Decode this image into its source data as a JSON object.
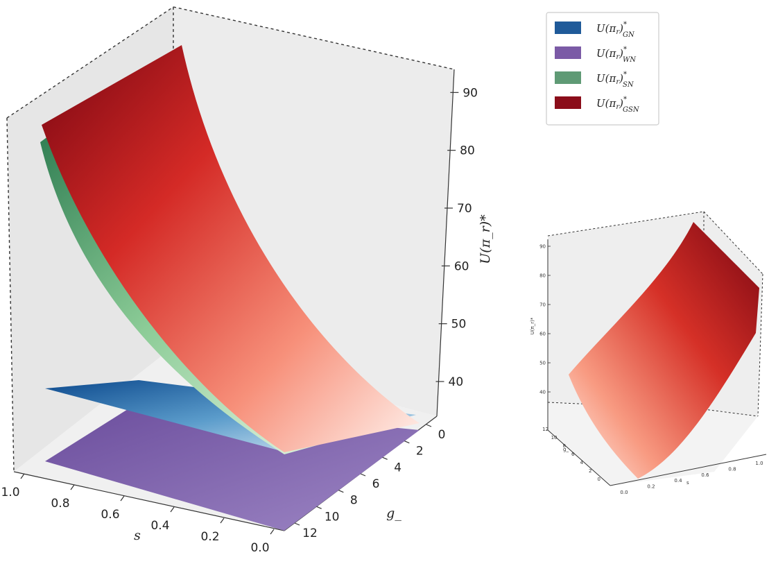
{
  "chart_data": [
    {
      "type": "surface3d",
      "zlabel": "U(π_r)*",
      "xlabel": "s",
      "ylabel": "g_",
      "x_ticks": [
        "1.0",
        "0.8",
        "0.6",
        "0.4",
        "0.2",
        "0.0"
      ],
      "y_ticks": [
        "0",
        "2",
        "4",
        "6",
        "8",
        "10",
        "12"
      ],
      "z_ticks": [
        "40",
        "50",
        "60",
        "70",
        "80",
        "90"
      ],
      "xlim": [
        0,
        1
      ],
      "ylim": [
        0,
        12
      ],
      "zlim": [
        34,
        94
      ],
      "legend_position": "top-right",
      "series": [
        {
          "key": "GN",
          "name_main": "U(π",
          "name_r": "r",
          "name_close": ")",
          "name_sup": "*",
          "name_sub": "GN",
          "color": "#1f5a99",
          "corners": {
            "s0_g0": 40,
            "s1_g0": 40,
            "s0_g12": 34,
            "s1_g12": 34
          }
        },
        {
          "key": "WN",
          "name_main": "U(π",
          "name_r": "r",
          "name_close": ")",
          "name_sup": "*",
          "name_sub": "WN",
          "color": "#7b5aa6",
          "corners": {
            "s0_g0": 36,
            "s1_g0": 36,
            "s0_g12": 24,
            "s1_g12": 24
          }
        },
        {
          "key": "SN",
          "name_main": "U(π",
          "name_r": "r",
          "name_close": ")",
          "name_sup": "*",
          "name_sub": "SN",
          "color": "#5f9a75",
          "corners": {
            "s0_g0": 36,
            "s1_g0": 82,
            "s0_g12": 24,
            "s1_g12": 38
          }
        },
        {
          "key": "GSN",
          "name_main": "U(π",
          "name_r": "r",
          "name_close": ")",
          "name_sup": "*",
          "name_sub": "GSN",
          "color": "#8b0d1a",
          "corners": {
            "s0_g0": 38,
            "s1_g0": 94,
            "s0_g12": 36,
            "s1_g12": 40
          }
        }
      ]
    },
    {
      "type": "surface3d",
      "series_shown": "GSN",
      "x_ticks": [
        "0.0",
        "0.2",
        "0.4",
        "0.6",
        "0.8",
        "1.0"
      ],
      "x_label": "s",
      "y_ticks": [
        "0",
        "2",
        "4",
        "6",
        "8",
        "10",
        "12"
      ],
      "y_label": "g_",
      "z_ticks": [
        "40",
        "50",
        "60",
        "70",
        "80",
        "90"
      ],
      "z_label": "U(π_r)*"
    }
  ]
}
